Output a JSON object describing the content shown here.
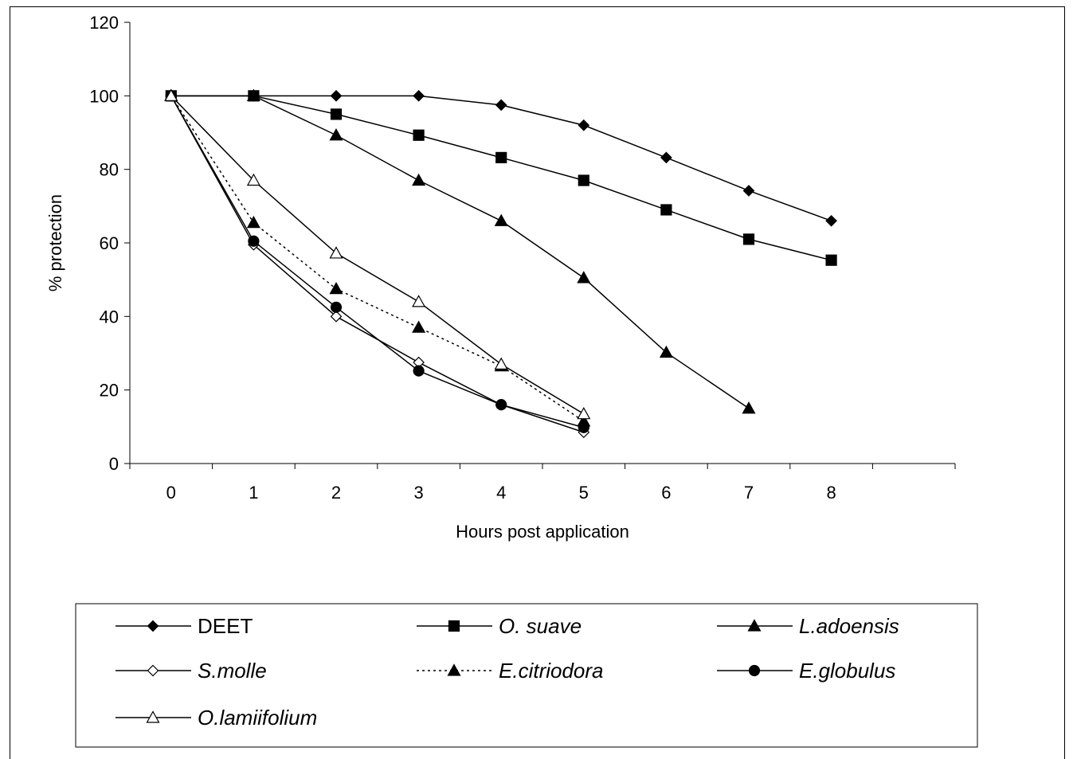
{
  "chart_data": {
    "type": "line",
    "xlabel": "Hours post application",
    "ylabel": "% protection",
    "x_ticks": [
      "0",
      "1",
      "2",
      "3",
      "4",
      "5",
      "6",
      "7",
      "8"
    ],
    "y_ticks": [
      "0",
      "20",
      "40",
      "60",
      "80",
      "100",
      "120"
    ],
    "xlim": [
      0,
      10
    ],
    "ylim": [
      0,
      120
    ],
    "grid": false,
    "legend_position": "bottom",
    "series": [
      {
        "name": "DEET",
        "italic": false,
        "marker": "diamond-filled",
        "dash": "solid",
        "x": [
          0,
          1,
          2,
          3,
          4,
          5,
          6,
          7,
          8
        ],
        "y": [
          100,
          100,
          100,
          100,
          97.5,
          92,
          83.2,
          74.2,
          66
        ]
      },
      {
        "name": "O. suave",
        "italic": true,
        "marker": "square-filled",
        "dash": "solid",
        "x": [
          0,
          1,
          2,
          3,
          4,
          5,
          6,
          7,
          8
        ],
        "y": [
          100,
          100,
          95,
          89.3,
          83.2,
          77,
          69,
          61,
          55.3
        ]
      },
      {
        "name": "L.adoensis",
        "italic": true,
        "marker": "triangle-filled",
        "dash": "solid",
        "x": [
          0,
          1,
          2,
          3,
          4,
          5,
          6,
          7
        ],
        "y": [
          100,
          100,
          89.3,
          77,
          66,
          50.5,
          30.2,
          15
        ]
      },
      {
        "name": "S.molle",
        "italic": true,
        "marker": "diamond-open",
        "dash": "solid",
        "x": [
          0,
          1,
          2,
          3,
          4,
          5
        ],
        "y": [
          100,
          59.5,
          40,
          27.5,
          16,
          8.5
        ]
      },
      {
        "name": "E.citriodora",
        "italic": true,
        "marker": "triangle-filled",
        "dash": "dotted",
        "x": [
          0,
          1,
          2,
          3,
          4,
          5
        ],
        "y": [
          100,
          65.5,
          47.5,
          37,
          26.5,
          11.5
        ]
      },
      {
        "name": "E.globulus",
        "italic": true,
        "marker": "circle-filled",
        "dash": "solid",
        "x": [
          0,
          1,
          2,
          3,
          4,
          5
        ],
        "y": [
          100,
          60.5,
          42.5,
          25.2,
          16,
          9.8
        ]
      },
      {
        "name": "O.lamiifolium",
        "italic": true,
        "marker": "triangle-open",
        "dash": "solid",
        "x": [
          0,
          1,
          2,
          3,
          4,
          5
        ],
        "y": [
          100,
          77,
          57.2,
          44,
          27,
          13.5
        ]
      }
    ]
  }
}
